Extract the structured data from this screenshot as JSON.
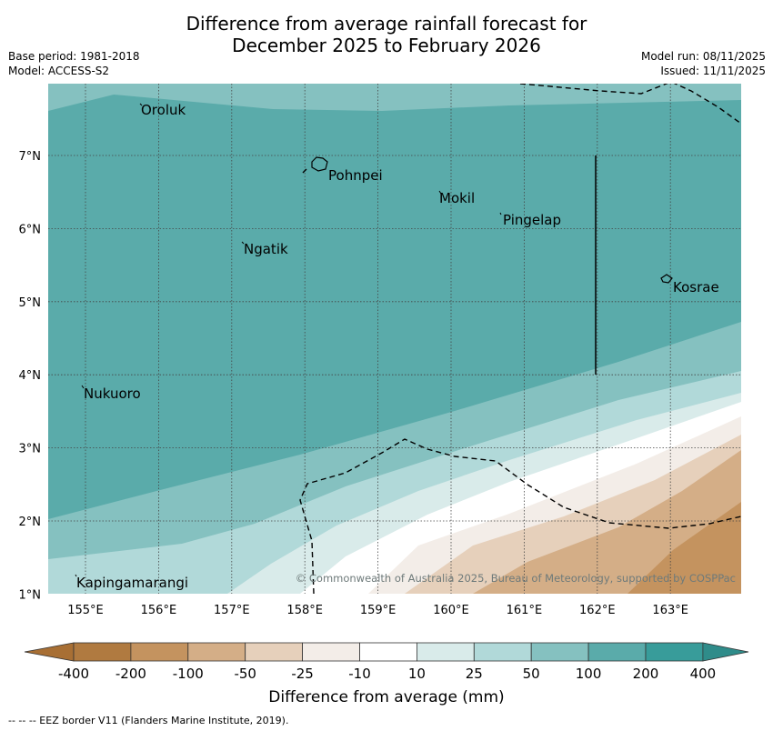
{
  "title": {
    "line1": "Difference from average rainfall forecast for",
    "line2": "December 2025 to February 2026"
  },
  "meta": {
    "base_period": "Base period: 1981-2018",
    "model": "Model: ACCESS-S2",
    "model_run": "Model run: 08/11/2025",
    "issued": "Issued: 11/11/2025"
  },
  "axes": {
    "x_ticks": [
      "155°E",
      "156°E",
      "157°E",
      "158°E",
      "159°E",
      "160°E",
      "161°E",
      "162°E",
      "163°E"
    ],
    "y_ticks": [
      "7°N",
      "6°N",
      "5°N",
      "4°N",
      "3°N",
      "2°N",
      "1°N"
    ]
  },
  "places": [
    "Oroluk",
    "Pohnpei",
    "Mokil",
    "Pingelap",
    "Ngatik",
    "Kosrae",
    "Nukuoro",
    "Kapingamarangi"
  ],
  "copyright": "© Commonwealth of Australia 2025, Bureau of Meteorology, supported by COSPPac",
  "colorbar": {
    "ticks": [
      "-400",
      "-200",
      "-100",
      "-50",
      "-25",
      "-10",
      "10",
      "25",
      "50",
      "100",
      "200",
      "400"
    ],
    "colors": [
      "#b07a40",
      "#c4935f",
      "#d4ae87",
      "#e6d0bb",
      "#f3ede8",
      "#ffffff",
      "#d9ebea",
      "#b1d9d9",
      "#85c1c0",
      "#5aabaa",
      "#389c9a"
    ],
    "extend_low": "#a86f34",
    "extend_high": "#2f8c8a",
    "label": "Difference from average (mm)"
  },
  "footnote": "--  --  -- EEZ border V11 (Flanders Marine Institute, 2019)."
}
